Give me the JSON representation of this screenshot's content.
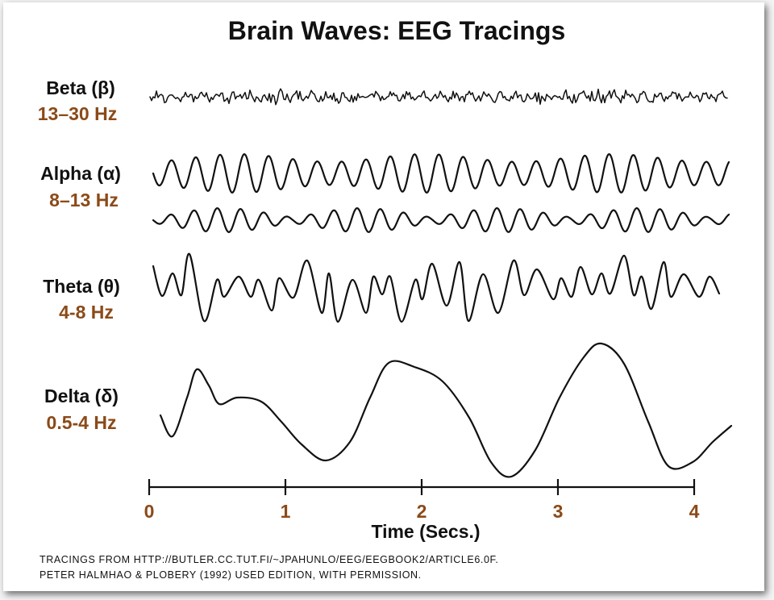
{
  "title": "Brain Waves: EEG Tracings",
  "colors": {
    "text": "#111111",
    "frequency": "#8b4a18",
    "background": "#ffffff"
  },
  "waves": [
    {
      "name": "Beta (β)",
      "frequency": "13–30 Hz"
    },
    {
      "name": "Alpha (α)",
      "frequency": "8–13 Hz"
    },
    {
      "name": "Theta (θ)",
      "frequency": "4-8 Hz"
    },
    {
      "name": "Delta (δ)",
      "frequency": "0.5-4 Hz"
    }
  ],
  "time_axis": {
    "label": "Time (Secs.)",
    "ticks": [
      "0",
      "1",
      "2",
      "3",
      "4"
    ]
  },
  "credit": [
    "TRACINGS FROM HTTP://BUTLER.CC.TUT.FI/~JPAHUNLO/EEG/EEGBOOK2/ARTICLE6.0F.",
    "PETER HALMHAO & PLOBERY (1992) USED EDITION, WITH PERMISSION."
  ]
}
